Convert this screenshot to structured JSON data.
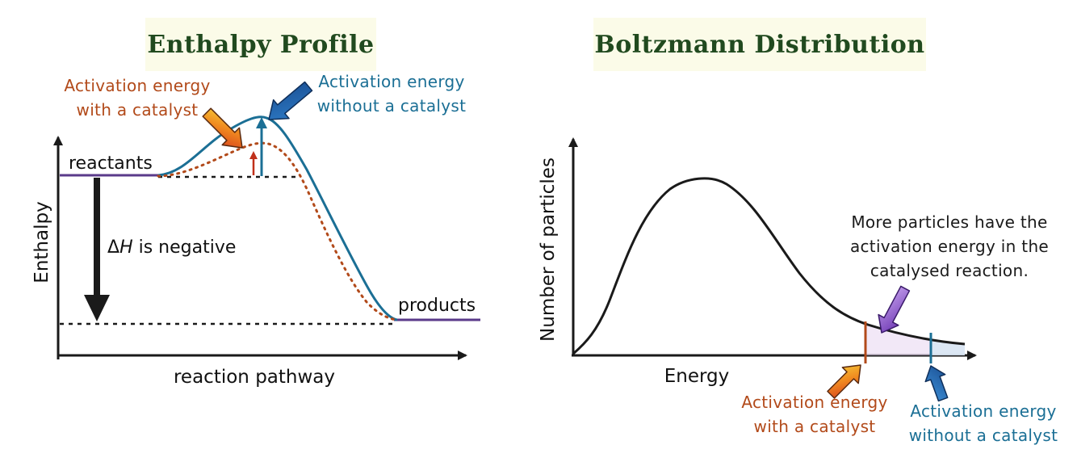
{
  "left_panel": {
    "title": "Enthalpy Profile",
    "y_axis_label": "Enthalpy",
    "x_axis_label": "reaction pathway",
    "reactants_label": "reactants",
    "products_label": "products",
    "delta_h_prefix": "Δ",
    "delta_h_symbol": "H",
    "delta_h_suffix": " is negative",
    "catalyst_label_line1": "Activation energy",
    "catalyst_label_line2": "with a catalyst",
    "no_catalyst_label_line1": "Activation energy",
    "no_catalyst_label_line2": "without a catalyst"
  },
  "right_panel": {
    "title": "Boltzmann Distribution",
    "y_axis_label": "Number of particles",
    "x_axis_label": "Energy",
    "note_line1": "More particles have the",
    "note_line2": "activation energy in the",
    "note_line3": "catalysed reaction.",
    "catalyst_label_line1": "Activation energy",
    "catalyst_label_line2": "with a catalyst",
    "no_catalyst_label_line1": "Activation energy",
    "no_catalyst_label_line2": "without a catalyst"
  },
  "colors": {
    "title_green": "#214a1f",
    "title_background": "#fbfbe8",
    "catalyst_red": "#b24a1a",
    "no_catalyst_blue": "#1b6f95",
    "highlight_purple": "#8b4fc7"
  }
}
